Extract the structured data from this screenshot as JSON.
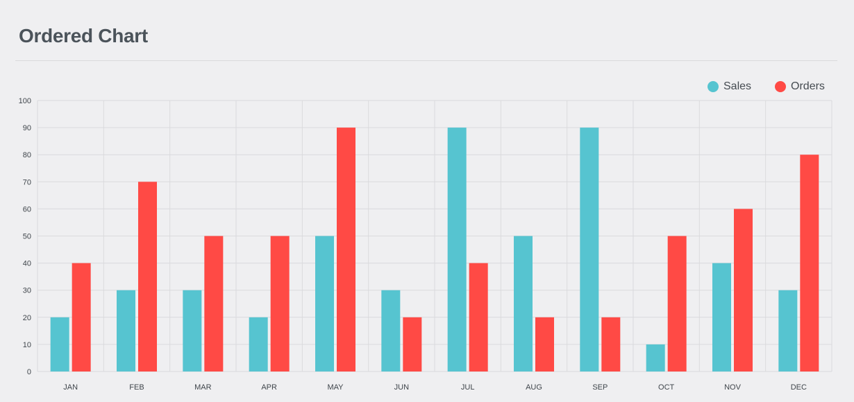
{
  "header": {
    "title": "Ordered Chart"
  },
  "colors": {
    "sales": "#56c4d0",
    "orders": "#ff4a45",
    "grid": "#dadadd",
    "text": "#3f454b"
  },
  "chart_data": {
    "type": "bar",
    "categories": [
      "JAN",
      "FEB",
      "MAR",
      "APR",
      "MAY",
      "JUN",
      "JUL",
      "AUG",
      "SEP",
      "OCT",
      "NOV",
      "DEC"
    ],
    "series": [
      {
        "name": "Sales",
        "values": [
          20,
          30,
          30,
          20,
          50,
          30,
          90,
          50,
          90,
          10,
          40,
          30
        ]
      },
      {
        "name": "Orders",
        "values": [
          40,
          70,
          50,
          50,
          90,
          20,
          40,
          20,
          20,
          50,
          60,
          80
        ]
      }
    ],
    "ylim": [
      0,
      100
    ],
    "yticks": [
      "0",
      "10",
      "20",
      "30",
      "40",
      "50",
      "60",
      "70",
      "80",
      "90",
      "100"
    ],
    "grid": true,
    "legend": "top-right"
  }
}
